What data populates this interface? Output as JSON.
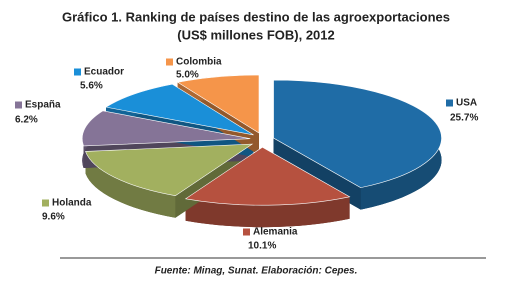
{
  "chart_data": {
    "type": "pie",
    "title": [
      "Gráfico 1. Ranking de países destino de las agroexportaciones",
      "(US$ millones FOB), 2012"
    ],
    "categories": [
      "USA",
      "Alemania",
      "Holanda",
      "España",
      "Ecuador",
      "Colombia"
    ],
    "values": [
      25.7,
      10.1,
      9.6,
      6.2,
      5.6,
      5.0
    ],
    "value_labels": [
      "25.7%",
      "10.1%",
      "9.6%",
      "6.2%",
      "5.6%",
      "5.0%"
    ],
    "colors": [
      "#1f6ca6",
      "#b6513f",
      "#a2b05f",
      "#857497",
      "#1a8fd8",
      "#f5954a"
    ],
    "source": "Fuente: Minag, Sunat. Elaboración: Cepes."
  }
}
